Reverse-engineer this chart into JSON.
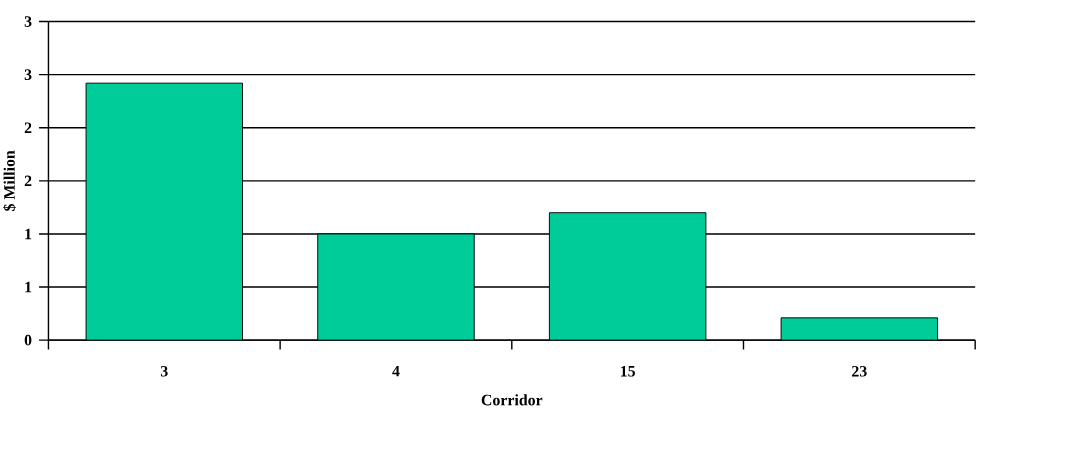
{
  "chart_data": {
    "type": "bar",
    "xlabel": "Corridor",
    "ylabel": "$ Million",
    "categories": [
      "3",
      "4",
      "15",
      "23"
    ],
    "values": [
      2.42,
      1.0,
      1.2,
      0.21
    ],
    "color": "#00cc99",
    "ylim": [
      0,
      3
    ],
    "yticks": [
      {
        "value": 0,
        "label": "0"
      },
      {
        "value": 0.5,
        "label": "1"
      },
      {
        "value": 1,
        "label": "1"
      },
      {
        "value": 1.5,
        "label": "2"
      },
      {
        "value": 2,
        "label": "2"
      },
      {
        "value": 2.5,
        "label": "3"
      },
      {
        "value": 3,
        "label": "3"
      }
    ],
    "grid": "y"
  }
}
